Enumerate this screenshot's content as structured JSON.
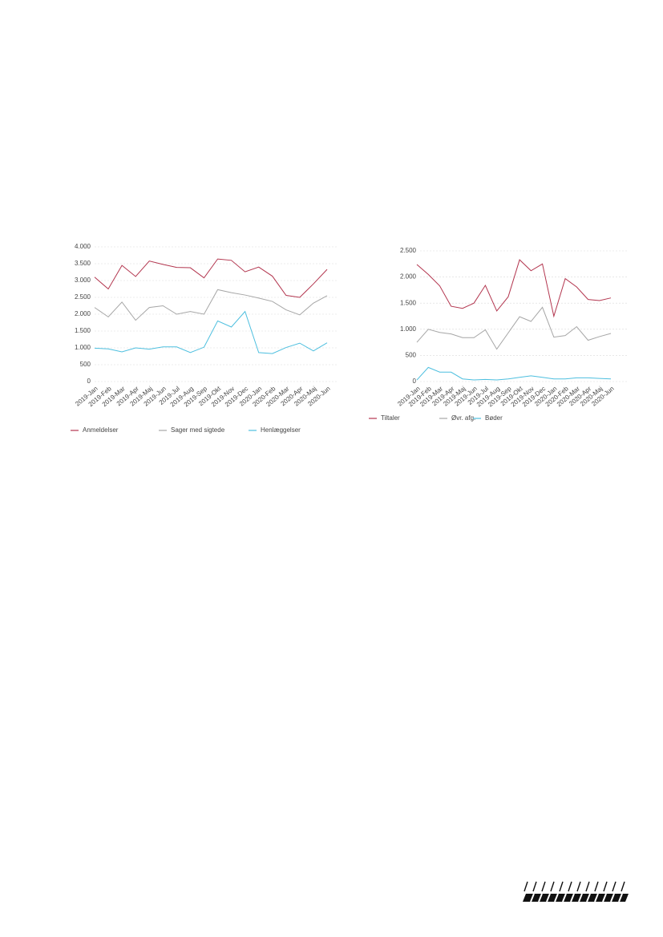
{
  "chart_data": [
    {
      "type": "line",
      "categories": [
        "2019-Jan",
        "2019-Feb",
        "2019-Mar",
        "2019-Apr",
        "2019-Maj",
        "2019-Jun",
        "2019-Jul",
        "2019-Aug",
        "2019-Sep",
        "2019-Okt",
        "2019-Nov",
        "2019-Dec",
        "2020-Jan",
        "2020-Feb",
        "2020-Mar",
        "2020-Apr",
        "2020-Maj",
        "2020-Jun"
      ],
      "series": [
        {
          "name": "Anmeldelser",
          "color": "#b3364f",
          "values": [
            3100,
            2750,
            3450,
            3120,
            3580,
            3480,
            3390,
            3380,
            3080,
            3640,
            3600,
            3260,
            3400,
            3130,
            2560,
            2500,
            2900,
            3330
          ]
        },
        {
          "name": "Sager med sigtede",
          "color": "#a6a6a6",
          "values": [
            2200,
            1920,
            2360,
            1820,
            2200,
            2250,
            2000,
            2080,
            2000,
            2730,
            2640,
            2570,
            2480,
            2380,
            2130,
            1980,
            2330,
            2550
          ]
        },
        {
          "name": "Henlæggelser",
          "color": "#4dbfdf",
          "values": [
            990,
            970,
            880,
            1000,
            960,
            1030,
            1030,
            860,
            1020,
            1800,
            1620,
            2080,
            860,
            830,
            1010,
            1140,
            910,
            1150
          ]
        }
      ],
      "ylim": [
        0,
        4000
      ],
      "yticks": [
        0,
        500,
        {
          "value": 1000,
          "label": "1.000"
        },
        {
          "value": 1500,
          "label": "1.500"
        },
        {
          "value": 2000,
          "label": "2.000"
        },
        {
          "value": 2500,
          "label": "2.500"
        },
        {
          "value": 3000,
          "label": "3.000"
        },
        {
          "value": 3500,
          "label": "3.500"
        },
        {
          "value": 4000,
          "label": "4.000"
        }
      ],
      "grid": true,
      "legend": "bottom"
    },
    {
      "type": "line",
      "categories": [
        "2019-Jan",
        "2019-Feb",
        "2019-Mar",
        "2019-Apr",
        "2019-Maj",
        "2019-Jun",
        "2019-Jul",
        "2019-Aug",
        "2019-Sep",
        "2019-Okt",
        "2019-Nov",
        "2019-Dec",
        "2020-Jan",
        "2020-Feb",
        "2020-Mar",
        "2020-Apr",
        "2020-Maj",
        "2020-Jun"
      ],
      "series": [
        {
          "name": "Tiltaler",
          "color": "#b3364f",
          "values": [
            2240,
            2050,
            1830,
            1440,
            1400,
            1500,
            1840,
            1350,
            1620,
            2330,
            2120,
            2250,
            1250,
            1970,
            1810,
            1570,
            1550,
            1600
          ]
        },
        {
          "name": "Øvr. afg.",
          "color": "#a6a6a6",
          "values": [
            750,
            1000,
            940,
            910,
            840,
            840,
            990,
            620,
            930,
            1240,
            1150,
            1420,
            850,
            880,
            1050,
            790,
            860,
            920
          ]
        },
        {
          "name": "Bøder",
          "color": "#4dbfdf",
          "values": [
            30,
            270,
            180,
            180,
            50,
            30,
            40,
            30,
            50,
            80,
            110,
            80,
            50,
            50,
            70,
            70,
            60,
            50
          ]
        }
      ],
      "ylim": [
        0,
        2500
      ],
      "yticks": [
        0,
        500,
        {
          "value": 1000,
          "label": "1.000"
        },
        {
          "value": 1500,
          "label": "1.500"
        },
        {
          "value": 2000,
          "label": "2.000"
        },
        {
          "value": 2500,
          "label": "2.500"
        }
      ],
      "grid": true,
      "legend": "bottom"
    }
  ]
}
